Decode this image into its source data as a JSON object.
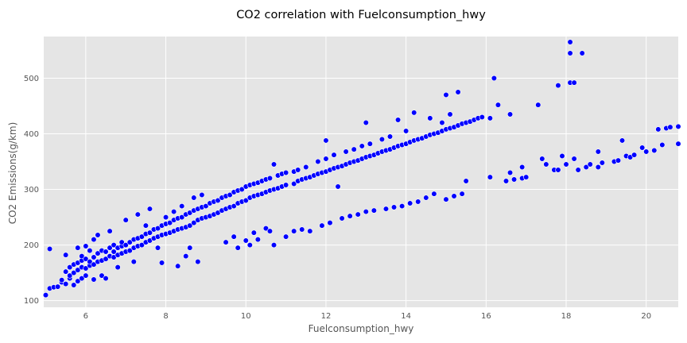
{
  "chart_data": {
    "type": "scatter",
    "title": "CO2 correlation with Fuelconsumption_hwy",
    "xlabel": "Fuelconsumption_hwy",
    "ylabel": "CO2 Emissions(g/km)",
    "xlim": [
      4.95,
      20.8
    ],
    "ylim": [
      88,
      575
    ],
    "xticks": [
      6,
      8,
      10,
      12,
      14,
      16,
      18,
      20
    ],
    "yticks": [
      100,
      200,
      300,
      400,
      500
    ],
    "grid": true,
    "legend": "none",
    "colors": {
      "marker": "#0000ff",
      "marker_edge": "#ffffff",
      "plot_background": "#e5e5e5",
      "grid": "#ffffff"
    },
    "series": [
      {
        "points": [
          [
            4.9,
            108
          ],
          [
            5.0,
            110
          ],
          [
            5.1,
            193
          ],
          [
            5.1,
            122
          ],
          [
            5.2,
            124
          ],
          [
            5.3,
            125
          ],
          [
            5.4,
            133
          ],
          [
            5.4,
            137
          ],
          [
            5.5,
            130
          ],
          [
            5.5,
            152
          ],
          [
            5.5,
            182
          ],
          [
            5.6,
            140
          ],
          [
            5.6,
            145
          ],
          [
            5.6,
            160
          ],
          [
            5.7,
            128
          ],
          [
            5.7,
            150
          ],
          [
            5.7,
            165
          ],
          [
            5.8,
            135
          ],
          [
            5.8,
            155
          ],
          [
            5.8,
            168
          ],
          [
            5.8,
            195
          ],
          [
            5.9,
            140
          ],
          [
            5.9,
            160
          ],
          [
            5.9,
            172
          ],
          [
            5.9,
            180
          ],
          [
            6.0,
            145
          ],
          [
            6.0,
            158
          ],
          [
            6.0,
            175
          ],
          [
            6.0,
            198
          ],
          [
            6.1,
            163
          ],
          [
            6.1,
            170
          ],
          [
            6.1,
            190
          ],
          [
            6.2,
            138
          ],
          [
            6.2,
            165
          ],
          [
            6.2,
            178
          ],
          [
            6.2,
            210
          ],
          [
            6.3,
            170
          ],
          [
            6.3,
            185
          ],
          [
            6.3,
            218
          ],
          [
            6.4,
            145
          ],
          [
            6.4,
            172
          ],
          [
            6.4,
            190
          ],
          [
            6.5,
            175
          ],
          [
            6.5,
            188
          ],
          [
            6.5,
            140
          ],
          [
            6.6,
            180
          ],
          [
            6.6,
            195
          ],
          [
            6.6,
            225
          ],
          [
            6.7,
            178
          ],
          [
            6.7,
            188
          ],
          [
            6.7,
            200
          ],
          [
            6.8,
            182
          ],
          [
            6.8,
            195
          ],
          [
            6.8,
            160
          ],
          [
            6.9,
            185
          ],
          [
            6.9,
            198
          ],
          [
            6.9,
            205
          ],
          [
            7.0,
            188
          ],
          [
            7.0,
            200
          ],
          [
            7.0,
            245
          ],
          [
            7.1,
            190
          ],
          [
            7.1,
            205
          ],
          [
            7.2,
            195
          ],
          [
            7.2,
            210
          ],
          [
            7.2,
            170
          ],
          [
            7.3,
            198
          ],
          [
            7.3,
            212
          ],
          [
            7.3,
            255
          ],
          [
            7.4,
            200
          ],
          [
            7.4,
            215
          ],
          [
            7.5,
            205
          ],
          [
            7.5,
            220
          ],
          [
            7.5,
            235
          ],
          [
            7.6,
            208
          ],
          [
            7.6,
            222
          ],
          [
            7.6,
            265
          ],
          [
            7.7,
            212
          ],
          [
            7.7,
            228
          ],
          [
            7.8,
            215
          ],
          [
            7.8,
            230
          ],
          [
            7.8,
            195
          ],
          [
            7.9,
            218
          ],
          [
            7.9,
            235
          ],
          [
            7.9,
            168
          ],
          [
            8.0,
            220
          ],
          [
            8.0,
            238
          ],
          [
            8.0,
            250
          ],
          [
            8.1,
            222
          ],
          [
            8.1,
            240
          ],
          [
            8.2,
            225
          ],
          [
            8.2,
            245
          ],
          [
            8.2,
            260
          ],
          [
            8.3,
            228
          ],
          [
            8.3,
            248
          ],
          [
            8.3,
            162
          ],
          [
            8.4,
            230
          ],
          [
            8.4,
            250
          ],
          [
            8.4,
            270
          ],
          [
            8.5,
            232
          ],
          [
            8.5,
            255
          ],
          [
            8.5,
            180
          ],
          [
            8.6,
            235
          ],
          [
            8.6,
            258
          ],
          [
            8.6,
            195
          ],
          [
            8.7,
            240
          ],
          [
            8.7,
            262
          ],
          [
            8.7,
            285
          ],
          [
            8.8,
            245
          ],
          [
            8.8,
            265
          ],
          [
            8.8,
            170
          ],
          [
            8.9,
            248
          ],
          [
            8.9,
            268
          ],
          [
            8.9,
            290
          ],
          [
            9.0,
            250
          ],
          [
            9.0,
            270
          ],
          [
            9.1,
            252
          ],
          [
            9.1,
            275
          ],
          [
            9.2,
            255
          ],
          [
            9.2,
            278
          ],
          [
            9.3,
            258
          ],
          [
            9.3,
            280
          ],
          [
            9.4,
            262
          ],
          [
            9.4,
            285
          ],
          [
            9.5,
            265
          ],
          [
            9.5,
            288
          ],
          [
            9.5,
            205
          ],
          [
            9.6,
            268
          ],
          [
            9.6,
            290
          ],
          [
            9.7,
            270
          ],
          [
            9.7,
            295
          ],
          [
            9.7,
            215
          ],
          [
            9.8,
            275
          ],
          [
            9.8,
            298
          ],
          [
            9.8,
            195
          ],
          [
            9.9,
            278
          ],
          [
            9.9,
            300
          ],
          [
            10.0,
            280
          ],
          [
            10.0,
            305
          ],
          [
            10.0,
            208
          ],
          [
            10.1,
            285
          ],
          [
            10.1,
            308
          ],
          [
            10.1,
            200
          ],
          [
            10.2,
            288
          ],
          [
            10.2,
            310
          ],
          [
            10.2,
            222
          ],
          [
            10.3,
            290
          ],
          [
            10.3,
            312
          ],
          [
            10.3,
            210
          ],
          [
            10.4,
            292
          ],
          [
            10.4,
            315
          ],
          [
            10.5,
            295
          ],
          [
            10.5,
            318
          ],
          [
            10.5,
            230
          ],
          [
            10.6,
            298
          ],
          [
            10.6,
            320
          ],
          [
            10.6,
            225
          ],
          [
            10.7,
            300
          ],
          [
            10.7,
            345
          ],
          [
            10.7,
            200
          ],
          [
            10.8,
            302
          ],
          [
            10.8,
            325
          ],
          [
            10.9,
            305
          ],
          [
            10.9,
            328
          ],
          [
            11.0,
            308
          ],
          [
            11.0,
            330
          ],
          [
            11.0,
            215
          ],
          [
            11.2,
            310
          ],
          [
            11.2,
            332
          ],
          [
            11.2,
            225
          ],
          [
            11.3,
            315
          ],
          [
            11.3,
            335
          ],
          [
            11.4,
            318
          ],
          [
            11.4,
            228
          ],
          [
            11.5,
            320
          ],
          [
            11.5,
            340
          ],
          [
            11.6,
            322
          ],
          [
            11.6,
            225
          ],
          [
            11.7,
            325
          ],
          [
            11.8,
            328
          ],
          [
            11.8,
            350
          ],
          [
            11.9,
            330
          ],
          [
            11.9,
            235
          ],
          [
            12.0,
            332
          ],
          [
            12.0,
            355
          ],
          [
            12.0,
            388
          ],
          [
            12.1,
            335
          ],
          [
            12.1,
            240
          ],
          [
            12.2,
            338
          ],
          [
            12.2,
            362
          ],
          [
            12.3,
            340
          ],
          [
            12.3,
            305
          ],
          [
            12.4,
            342
          ],
          [
            12.4,
            248
          ],
          [
            12.5,
            345
          ],
          [
            12.5,
            368
          ],
          [
            12.6,
            348
          ],
          [
            12.6,
            252
          ],
          [
            12.7,
            350
          ],
          [
            12.7,
            372
          ],
          [
            12.8,
            352
          ],
          [
            12.8,
            255
          ],
          [
            12.9,
            355
          ],
          [
            12.9,
            378
          ],
          [
            13.0,
            358
          ],
          [
            13.0,
            420
          ],
          [
            13.0,
            260
          ],
          [
            13.1,
            360
          ],
          [
            13.1,
            382
          ],
          [
            13.2,
            362
          ],
          [
            13.2,
            262
          ],
          [
            13.3,
            365
          ],
          [
            13.4,
            368
          ],
          [
            13.4,
            390
          ],
          [
            13.5,
            370
          ],
          [
            13.5,
            265
          ],
          [
            13.6,
            372
          ],
          [
            13.6,
            395
          ],
          [
            13.7,
            375
          ],
          [
            13.7,
            268
          ],
          [
            13.8,
            378
          ],
          [
            13.8,
            425
          ],
          [
            13.9,
            380
          ],
          [
            13.9,
            270
          ],
          [
            14.0,
            382
          ],
          [
            14.0,
            405
          ],
          [
            14.1,
            385
          ],
          [
            14.1,
            275
          ],
          [
            14.2,
            388
          ],
          [
            14.2,
            438
          ],
          [
            14.3,
            390
          ],
          [
            14.3,
            278
          ],
          [
            14.4,
            392
          ],
          [
            14.5,
            395
          ],
          [
            14.5,
            285
          ],
          [
            14.6,
            398
          ],
          [
            14.6,
            428
          ],
          [
            14.7,
            400
          ],
          [
            14.7,
            292
          ],
          [
            14.8,
            402
          ],
          [
            14.9,
            405
          ],
          [
            14.9,
            420
          ],
          [
            15.0,
            408
          ],
          [
            15.0,
            470
          ],
          [
            15.0,
            282
          ],
          [
            15.1,
            410
          ],
          [
            15.1,
            435
          ],
          [
            15.2,
            412
          ],
          [
            15.2,
            288
          ],
          [
            15.3,
            415
          ],
          [
            15.3,
            475
          ],
          [
            15.4,
            418
          ],
          [
            15.4,
            292
          ],
          [
            15.5,
            420
          ],
          [
            15.5,
            315
          ],
          [
            15.6,
            422
          ],
          [
            15.7,
            425
          ],
          [
            15.8,
            428
          ],
          [
            15.9,
            430
          ],
          [
            16.1,
            428
          ],
          [
            16.1,
            322
          ],
          [
            16.2,
            500
          ],
          [
            16.3,
            452
          ],
          [
            16.5,
            315
          ],
          [
            16.6,
            435
          ],
          [
            16.6,
            330
          ],
          [
            16.7,
            318
          ],
          [
            16.9,
            320
          ],
          [
            16.9,
            340
          ],
          [
            17.0,
            322
          ],
          [
            17.3,
            452
          ],
          [
            17.4,
            355
          ],
          [
            17.5,
            345
          ],
          [
            17.7,
            335
          ],
          [
            17.8,
            335
          ],
          [
            17.8,
            487
          ],
          [
            17.9,
            360
          ],
          [
            18.0,
            345
          ],
          [
            18.1,
            565
          ],
          [
            18.1,
            545
          ],
          [
            18.1,
            492
          ],
          [
            18.2,
            492
          ],
          [
            18.2,
            355
          ],
          [
            18.3,
            335
          ],
          [
            18.4,
            545
          ],
          [
            18.5,
            340
          ],
          [
            18.6,
            345
          ],
          [
            18.8,
            340
          ],
          [
            18.8,
            368
          ],
          [
            18.9,
            348
          ],
          [
            19.2,
            350
          ],
          [
            19.3,
            352
          ],
          [
            19.4,
            388
          ],
          [
            19.5,
            360
          ],
          [
            19.6,
            358
          ],
          [
            19.7,
            362
          ],
          [
            19.9,
            375
          ],
          [
            20.0,
            368
          ],
          [
            20.2,
            370
          ],
          [
            20.3,
            408
          ],
          [
            20.4,
            380
          ],
          [
            20.5,
            410
          ],
          [
            20.6,
            412
          ],
          [
            20.8,
            382
          ],
          [
            20.8,
            413
          ]
        ]
      }
    ]
  }
}
